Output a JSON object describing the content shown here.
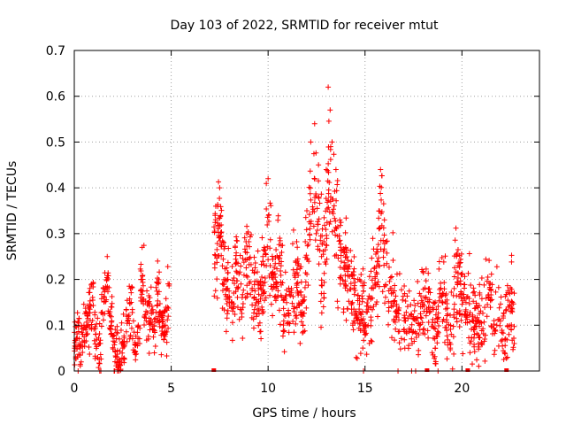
{
  "chart_data": {
    "type": "scatter",
    "title": "Day 103 of 2022, SRMTID for receiver mtut",
    "xlabel": "GPS time / hours",
    "ylabel": "SRMTID / TECUs",
    "xlim": [
      0,
      24
    ],
    "ylim": [
      0,
      0.7
    ],
    "x_ticks": [
      0,
      5,
      10,
      15,
      20
    ],
    "x_tick_labels": [
      "0",
      "5",
      "10",
      "15",
      "20"
    ],
    "y_ticks": [
      0,
      0.1,
      0.2,
      0.3,
      0.4,
      0.5,
      0.6,
      0.7
    ],
    "y_tick_labels": [
      "0",
      "0.1",
      "0.2",
      "0.3",
      "0.4",
      "0.5",
      "0.6",
      "0.7"
    ],
    "grid": true,
    "marker": "+",
    "color": "#ff0000",
    "series": [
      {
        "name": "SRMTID",
        "segments": [
          {
            "x_range": [
              0.0,
              4.9
            ],
            "typical": 0.08,
            "spread": 0.06,
            "max": 0.28
          },
          {
            "x_range": [
              7.2,
              22.7
            ],
            "typical": 0.15,
            "spread": 0.09,
            "max": 0.62
          }
        ],
        "points": [
          [
            0.1,
            0.07
          ],
          [
            0.3,
            0.05
          ],
          [
            0.5,
            0.1
          ],
          [
            0.7,
            0.12
          ],
          [
            0.9,
            0.19
          ],
          [
            1.1,
            0.08
          ],
          [
            1.3,
            0.06
          ],
          [
            1.5,
            0.18
          ],
          [
            1.7,
            0.25
          ],
          [
            1.9,
            0.14
          ],
          [
            2.1,
            0.02
          ],
          [
            2.3,
            0.0
          ],
          [
            2.5,
            0.05
          ],
          [
            2.7,
            0.12
          ],
          [
            2.9,
            0.18
          ],
          [
            3.1,
            0.04
          ],
          [
            3.3,
            0.1
          ],
          [
            3.5,
            0.27
          ],
          [
            3.7,
            0.13
          ],
          [
            3.9,
            0.16
          ],
          [
            4.1,
            0.09
          ],
          [
            4.3,
            0.24
          ],
          [
            4.5,
            0.12
          ],
          [
            4.7,
            0.1
          ],
          [
            4.9,
            0.19
          ],
          [
            7.3,
            0.36
          ],
          [
            7.5,
            0.4
          ],
          [
            7.7,
            0.28
          ],
          [
            7.9,
            0.2
          ],
          [
            8.1,
            0.15
          ],
          [
            8.3,
            0.27
          ],
          [
            8.6,
            0.19
          ],
          [
            8.9,
            0.3
          ],
          [
            9.2,
            0.22
          ],
          [
            9.5,
            0.18
          ],
          [
            9.8,
            0.27
          ],
          [
            10.0,
            0.42
          ],
          [
            10.3,
            0.21
          ],
          [
            10.6,
            0.29
          ],
          [
            10.9,
            0.12
          ],
          [
            11.2,
            0.18
          ],
          [
            11.5,
            0.24
          ],
          [
            11.8,
            0.1
          ],
          [
            12.0,
            0.35
          ],
          [
            12.2,
            0.5
          ],
          [
            12.4,
            0.54
          ],
          [
            12.6,
            0.45
          ],
          [
            12.8,
            0.31
          ],
          [
            13.0,
            0.44
          ],
          [
            13.1,
            0.62
          ],
          [
            13.2,
            0.57
          ],
          [
            13.3,
            0.5
          ],
          [
            13.5,
            0.44
          ],
          [
            13.7,
            0.33
          ],
          [
            14.0,
            0.27
          ],
          [
            14.3,
            0.21
          ],
          [
            14.6,
            0.11
          ],
          [
            15.0,
            0.08
          ],
          [
            15.3,
            0.16
          ],
          [
            15.6,
            0.26
          ],
          [
            15.8,
            0.44
          ],
          [
            16.0,
            0.33
          ],
          [
            16.3,
            0.18
          ],
          [
            16.6,
            0.12
          ],
          [
            17.0,
            0.09
          ],
          [
            17.4,
            0.07
          ],
          [
            17.8,
            0.1
          ],
          [
            18.2,
            0.13
          ],
          [
            18.6,
            0.07
          ],
          [
            19.0,
            0.17
          ],
          [
            19.4,
            0.05
          ],
          [
            19.8,
            0.23
          ],
          [
            20.2,
            0.12
          ],
          [
            20.6,
            0.09
          ],
          [
            21.0,
            0.06
          ],
          [
            21.4,
            0.16
          ],
          [
            21.8,
            0.1
          ],
          [
            22.2,
            0.04
          ],
          [
            22.5,
            0.13
          ],
          [
            22.7,
            0.06
          ]
        ]
      }
    ],
    "axis_markers": [
      7.2,
      18.2,
      20.3,
      22.3
    ]
  }
}
